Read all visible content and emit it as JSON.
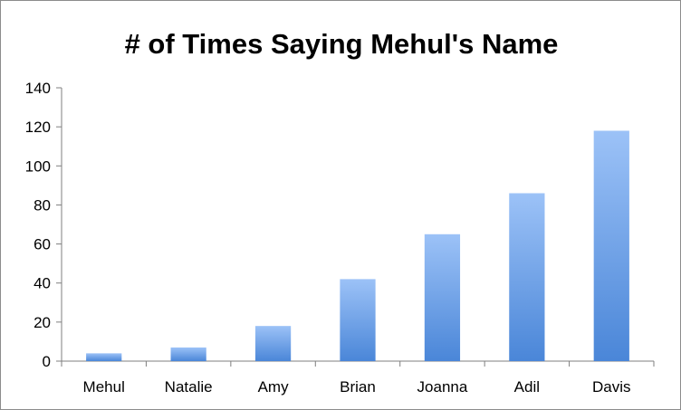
{
  "chart_data": {
    "type": "bar",
    "title": "# of Times Saying Mehul's Name",
    "xlabel": "",
    "ylabel": "",
    "categories": [
      "Mehul",
      "Natalie",
      "Amy",
      "Brian",
      "Joanna",
      "Adil",
      "Davis"
    ],
    "values": [
      4,
      7,
      18,
      42,
      65,
      86,
      118
    ],
    "ylim": [
      0,
      140
    ],
    "yticks": [
      0,
      20,
      40,
      60,
      80,
      100,
      120,
      140
    ],
    "grid": false,
    "legend": "none",
    "colors": {
      "bar_top": "#9cc2f7",
      "bar_bottom": "#4a86d8",
      "axis": "#7f7f7f"
    }
  }
}
